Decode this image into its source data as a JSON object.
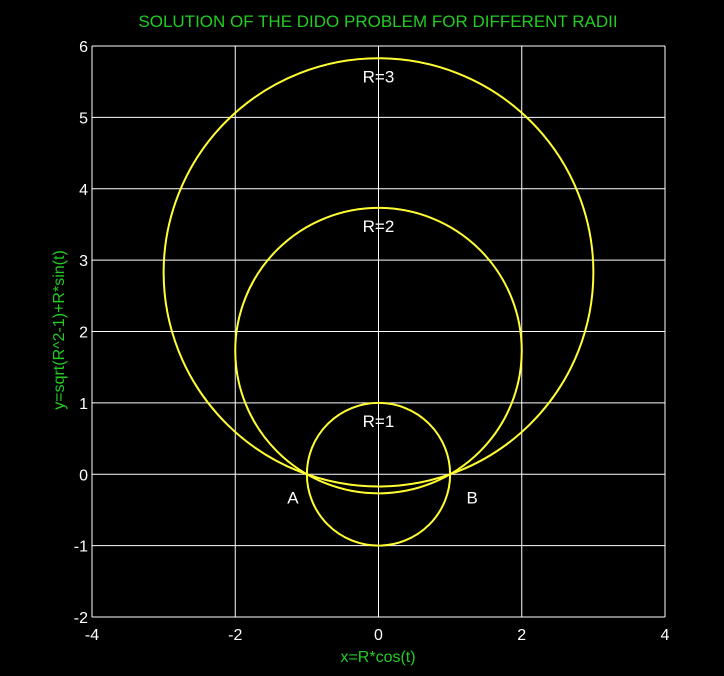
{
  "chart_data": {
    "type": "line",
    "title": "SOLUTION OF THE DIDO PROBLEM FOR DIFFERENT RADII",
    "xlabel": "x=R*cos(t)",
    "ylabel": "y=sqrt(R^2-1)+R*sin(t)",
    "xlim": [
      -4,
      4
    ],
    "ylim": [
      -2,
      6
    ],
    "xticks": [
      "-4",
      "-2",
      "0",
      "2",
      "4"
    ],
    "yticks": [
      "-2",
      "-1",
      "0",
      "1",
      "2",
      "3",
      "4",
      "5",
      "6"
    ],
    "grid": true,
    "series": [
      {
        "name": "R=1",
        "R": 1,
        "center_y": 0
      },
      {
        "name": "R=2",
        "R": 2,
        "center_y": 1.732
      },
      {
        "name": "R=3",
        "R": 3,
        "center_y": 2.828
      }
    ],
    "annotations": [
      {
        "text": "A",
        "x": -1,
        "y": 0
      },
      {
        "text": "B",
        "x": 1,
        "y": 0
      }
    ]
  },
  "colors": {
    "background": "#000000",
    "title": "#22cc22",
    "axis_label": "#22cc22",
    "curve": "#ffff33",
    "grid": "#ffffff",
    "tick_label": "#ffffff"
  }
}
